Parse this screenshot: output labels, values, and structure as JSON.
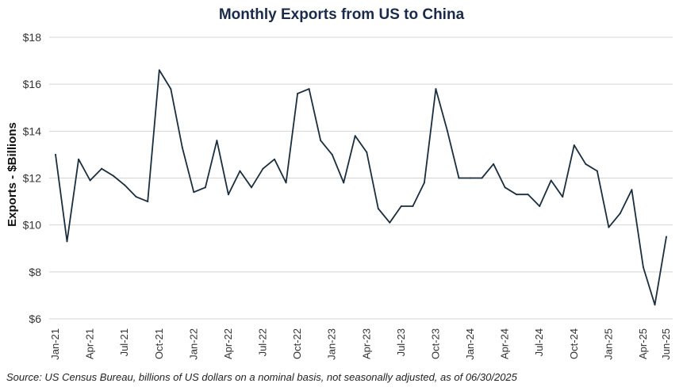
{
  "chart_data": {
    "type": "line",
    "title": "Monthly Exports from US to China",
    "xlabel": "",
    "ylabel": "Exports - $Billions",
    "ylim": [
      6,
      18
    ],
    "yticks": [
      "$6",
      "$8",
      "$10",
      "$12",
      "$14",
      "$16",
      "$18"
    ],
    "grid": "horizontal",
    "x": [
      "Jan-21",
      "Feb-21",
      "Mar-21",
      "Apr-21",
      "May-21",
      "Jun-21",
      "Jul-21",
      "Aug-21",
      "Sep-21",
      "Oct-21",
      "Nov-21",
      "Dec-21",
      "Jan-22",
      "Feb-22",
      "Mar-22",
      "Apr-22",
      "May-22",
      "Jun-22",
      "Jul-22",
      "Aug-22",
      "Sep-22",
      "Oct-22",
      "Nov-22",
      "Dec-22",
      "Jan-23",
      "Feb-23",
      "Mar-23",
      "Apr-23",
      "May-23",
      "Jun-23",
      "Jul-23",
      "Aug-23",
      "Sep-23",
      "Oct-23",
      "Nov-23",
      "Dec-23",
      "Jan-24",
      "Feb-24",
      "Mar-24",
      "Apr-24",
      "May-24",
      "Jun-24",
      "Jul-24",
      "Aug-24",
      "Sep-24",
      "Oct-24",
      "Nov-24",
      "Dec-24",
      "Jan-25",
      "Feb-25",
      "Mar-25",
      "Apr-25",
      "May-25",
      "Jun-25"
    ],
    "xticks": [
      "Jan-21",
      "Apr-21",
      "Jul-21",
      "Oct-21",
      "Jan-22",
      "Apr-22",
      "Jul-22",
      "Oct-22",
      "Jan-23",
      "Apr-23",
      "Jul-23",
      "Oct-23",
      "Jan-24",
      "Apr-24",
      "Jul-24",
      "Oct-24",
      "Jan-25",
      "Apr-25",
      "Jun-25"
    ],
    "series": [
      {
        "name": "",
        "color": "#1a2e3e",
        "values": [
          13.0,
          9.3,
          12.8,
          11.9,
          12.4,
          12.1,
          11.7,
          11.2,
          11.0,
          16.6,
          15.8,
          13.3,
          11.4,
          11.6,
          13.6,
          11.3,
          12.3,
          11.6,
          12.4,
          12.8,
          11.8,
          15.6,
          15.8,
          13.6,
          13.0,
          11.8,
          13.8,
          13.1,
          10.7,
          10.1,
          10.8,
          10.8,
          11.8,
          15.8,
          14.0,
          12.0,
          12.0,
          12.0,
          12.6,
          11.6,
          11.3,
          11.3,
          10.8,
          11.9,
          11.2,
          13.4,
          12.6,
          12.3,
          9.9,
          10.5,
          11.5,
          8.2,
          6.6,
          9.5
        ]
      }
    ]
  },
  "source": "Source: US Census Bureau, billions of US dollars on a nominal basis, not seasonally adjusted, as of 06/30/2025"
}
